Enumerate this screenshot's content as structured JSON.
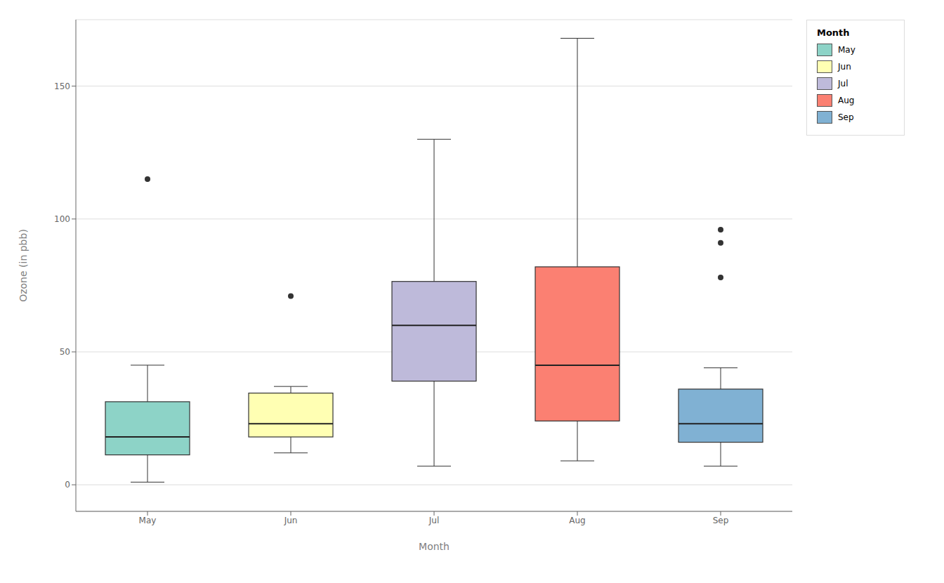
{
  "chart_data": {
    "type": "box",
    "xlabel": "Month",
    "ylabel": "Ozone (in pbb)",
    "categories": [
      "May",
      "Jun",
      "Jul",
      "Aug",
      "Sep"
    ],
    "colors": [
      "#8dd3c7",
      "#ffffb3",
      "#bebada",
      "#fb8072",
      "#80b1d3"
    ],
    "boxes": [
      {
        "whisker_low": 1,
        "q1": 11.25,
        "median": 18.0,
        "q3": 31.25,
        "whisker_high": 45,
        "outliers": [
          115
        ]
      },
      {
        "whisker_low": 12,
        "q1": 18.0,
        "median": 23.0,
        "q3": 34.5,
        "whisker_high": 37,
        "outliers": [
          71
        ]
      },
      {
        "whisker_low": 7,
        "q1": 39.0,
        "median": 60.0,
        "q3": 76.5,
        "whisker_high": 130,
        "outliers": []
      },
      {
        "whisker_low": 9,
        "q1": 24.0,
        "median": 45.0,
        "q3": 82.0,
        "whisker_high": 168,
        "outliers": []
      },
      {
        "whisker_low": 7,
        "q1": 16.0,
        "median": 23.0,
        "q3": 36.0,
        "whisker_high": 44,
        "outliers": [
          96,
          91,
          78
        ]
      }
    ],
    "ylim": [
      -10,
      175
    ],
    "yticks": [
      0,
      50,
      100,
      150
    ],
    "grid": true,
    "legend": "upper right",
    "legend_title": "Month"
  }
}
